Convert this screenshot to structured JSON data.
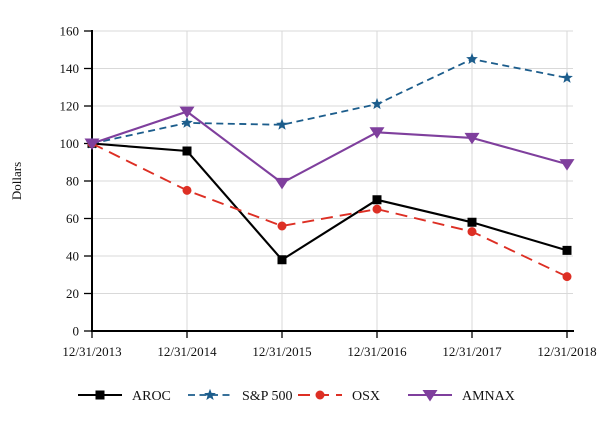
{
  "chart_data": {
    "type": "line",
    "title": "",
    "ylabel": "Dollars",
    "xlabel": "",
    "x_tick_labels": [
      "12/31/2013",
      "12/31/2014",
      "12/31/2015",
      "12/31/2016",
      "12/31/2017",
      "12/31/2018"
    ],
    "y_ticks": [
      0,
      20,
      40,
      60,
      80,
      100,
      120,
      140,
      160
    ],
    "ylim": [
      0,
      160
    ],
    "grid": true,
    "legend_position": "bottom",
    "colors": {
      "grid": "#d9d9d9",
      "axis": "#000000"
    },
    "series": [
      {
        "name": "AROC",
        "color": "#000000",
        "line_style": "solid",
        "marker": "square",
        "values": [
          100,
          96,
          38,
          70,
          58,
          43
        ]
      },
      {
        "name": "S&P 500",
        "color": "#1c5d8c",
        "line_style": "dashed",
        "marker": "star",
        "values": [
          100,
          111,
          110,
          121,
          145,
          135
        ]
      },
      {
        "name": "OSX",
        "color": "#dd2f24",
        "line_style": "long-dashed",
        "marker": "circle",
        "values": [
          100,
          75,
          56,
          65,
          53,
          29
        ]
      },
      {
        "name": "AMNAX",
        "color": "#7f3f9d",
        "line_style": "solid",
        "marker": "triangle-down",
        "values": [
          100,
          117,
          79,
          106,
          103,
          89
        ]
      }
    ]
  }
}
